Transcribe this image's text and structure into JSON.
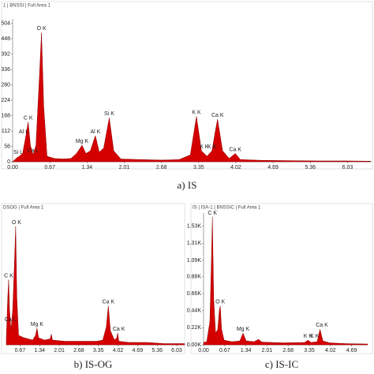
{
  "chart_data": [
    {
      "type": "area",
      "title": "1 | BNSSI | Full Area 1",
      "caption": "a) IS",
      "color": "#d40000",
      "x": [
        0.0,
        0.08,
        0.12,
        0.18,
        0.24,
        0.28,
        0.32,
        0.37,
        0.42,
        0.48,
        0.52,
        0.56,
        0.62,
        0.75,
        0.9,
        1.05,
        1.15,
        1.25,
        1.32,
        1.4,
        1.49,
        1.56,
        1.64,
        1.74,
        1.82,
        1.95,
        2.3,
        2.7,
        3.0,
        3.2,
        3.31,
        3.4,
        3.5,
        3.59,
        3.64,
        3.69,
        3.78,
        3.9,
        4.01,
        4.1,
        4.5,
        5.0,
        5.5,
        6.0,
        6.45
      ],
      "values": [
        0,
        15,
        20,
        30,
        95,
        145,
        60,
        25,
        60,
        300,
        470,
        200,
        20,
        12,
        10,
        12,
        30,
        60,
        30,
        40,
        95,
        35,
        50,
        160,
        40,
        10,
        8,
        6,
        8,
        25,
        165,
        40,
        20,
        40,
        100,
        155,
        40,
        12,
        30,
        8,
        5,
        4,
        3,
        3,
        2
      ],
      "xlim": [
        0,
        6.45
      ],
      "ylim": [
        0,
        520
      ],
      "xticks": [
        {
          "value": 0,
          "label": "0.00"
        },
        0.67,
        1.34,
        2.01,
        2.68,
        3.35,
        4.02,
        4.69,
        5.36,
        6.03
      ],
      "yticks": [
        0,
        56,
        112,
        168,
        224,
        280,
        336,
        392,
        448,
        504
      ],
      "annotations": [
        {
          "label": "Si L",
          "x": 0.1,
          "y": 20
        },
        {
          "label": "Ca L",
          "x": 0.37,
          "y": 25
        },
        {
          "label": "Al L",
          "x": 0.2,
          "y": 95
        },
        {
          "label": "C K",
          "x": 0.28,
          "y": 145
        },
        {
          "label": "O K",
          "x": 0.52,
          "y": 470
        },
        {
          "label": "Mg K",
          "x": 1.25,
          "y": 60
        },
        {
          "label": "Al K",
          "x": 1.49,
          "y": 95
        },
        {
          "label": "Si K",
          "x": 1.74,
          "y": 160
        },
        {
          "label": "K K",
          "x": 3.31,
          "y": 165
        },
        {
          "label": "K K",
          "x": 3.59,
          "y": 40
        },
        {
          "label": "Ca K",
          "x": 3.69,
          "y": 155
        },
        {
          "label": "K K",
          "x": 3.45,
          "y": 40
        },
        {
          "label": "Ca K",
          "x": 4.01,
          "y": 30
        }
      ]
    },
    {
      "type": "area",
      "title": "DSOG | Full Area 1",
      "caption": "b) IS-OG",
      "color": "#d40000",
      "x": [
        0.2,
        0.25,
        0.28,
        0.31,
        0.36,
        0.42,
        0.48,
        0.52,
        0.56,
        0.62,
        0.8,
        1.1,
        1.2,
        1.25,
        1.3,
        1.5,
        1.7,
        1.74,
        1.78,
        2.2,
        2.8,
        3.3,
        3.5,
        3.62,
        3.69,
        3.76,
        3.9,
        3.98,
        4.01,
        4.05,
        4.4,
        5.0,
        5.6,
        6.3
      ],
      "values": [
        5,
        40,
        55,
        30,
        12,
        30,
        70,
        100,
        40,
        8,
        6,
        4,
        8,
        14,
        6,
        4,
        5,
        9,
        4,
        3,
        3,
        3,
        4,
        15,
        33,
        12,
        4,
        6,
        10,
        3,
        2,
        2,
        1,
        1
      ],
      "xlim": [
        0.2,
        6.3
      ],
      "ylim": [
        0,
        110
      ],
      "xticks": [
        0.67,
        1.34,
        2.01,
        2.68,
        3.35,
        4.02,
        4.69,
        5.36,
        6.03
      ],
      "annotations": [
        {
          "label": "O K",
          "x": 0.55,
          "y": 100
        },
        {
          "label": "C K",
          "x": 0.28,
          "y": 55
        },
        {
          "label": "Ca L",
          "x": 0.34,
          "y": 18
        },
        {
          "label": "Mg K",
          "x": 1.25,
          "y": 14
        },
        {
          "label": "Ca K",
          "x": 3.69,
          "y": 33
        },
        {
          "label": "Ca K",
          "x": 4.05,
          "y": 10
        }
      ]
    },
    {
      "type": "area",
      "title": "IS | ISA-1 | BNSSIC | Full Area 1",
      "caption": "c) IS-IC",
      "color": "#d40000",
      "x": [
        0,
        0.1,
        0.2,
        0.25,
        0.28,
        0.32,
        0.38,
        0.45,
        0.5,
        0.53,
        0.57,
        0.65,
        0.9,
        1.15,
        1.25,
        1.35,
        1.6,
        1.74,
        1.85,
        2.5,
        3.2,
        3.31,
        3.4,
        3.6,
        3.69,
        3.78,
        4.0,
        4.5,
        5.2
      ],
      "values": [
        30,
        40,
        300,
        1100,
        1650,
        600,
        150,
        200,
        450,
        500,
        200,
        60,
        40,
        50,
        150,
        50,
        40,
        70,
        35,
        25,
        30,
        60,
        30,
        40,
        200,
        50,
        25,
        15,
        10
      ],
      "xlim": [
        0,
        5.2
      ],
      "ylim": [
        0,
        1700
      ],
      "xticks": [
        {
          "value": 0,
          "label": "0.00"
        },
        0.67,
        1.34,
        2.01,
        2.68,
        3.35,
        4.02,
        4.69
      ],
      "yticks": [
        {
          "value": 0,
          "label": "0.00K"
        },
        {
          "value": 220,
          "label": "0.22K"
        },
        {
          "value": 440,
          "label": "0.44K"
        },
        {
          "value": 660,
          "label": "0.66K"
        },
        {
          "value": 880,
          "label": "0.88K"
        },
        {
          "value": 1090,
          "label": "1.09K"
        },
        {
          "value": 1310,
          "label": "1.31K"
        },
        {
          "value": 1530,
          "label": "1.53K"
        }
      ],
      "annotations": [
        {
          "label": "C K",
          "x": 0.28,
          "y": 1650
        },
        {
          "label": "O K",
          "x": 0.53,
          "y": 500
        },
        {
          "label": "Mg K",
          "x": 1.25,
          "y": 150
        },
        {
          "label": "K K",
          "x": 3.31,
          "y": 60
        },
        {
          "label": "K K",
          "x": 3.52,
          "y": 60
        },
        {
          "label": "Ca K",
          "x": 3.75,
          "y": 200
        }
      ]
    }
  ]
}
